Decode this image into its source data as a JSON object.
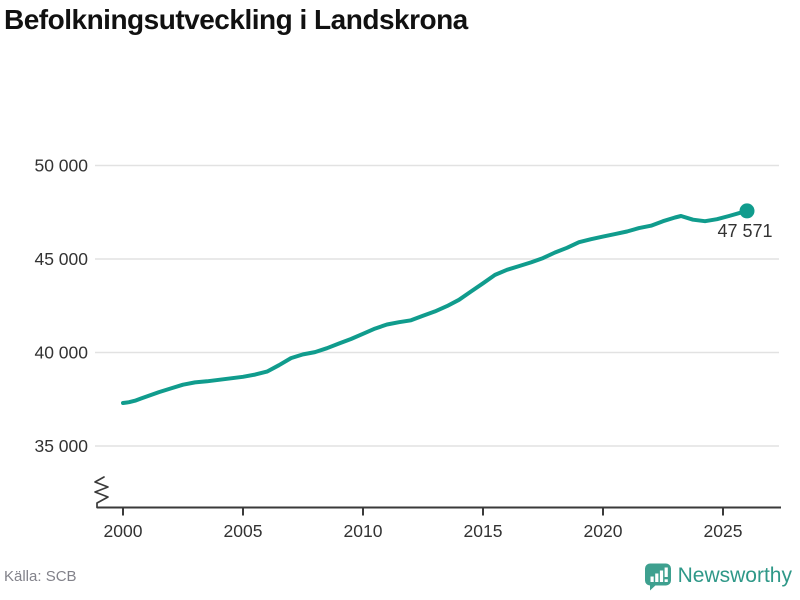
{
  "title": "Befolkningsutveckling i Landskrona",
  "source": {
    "label": "Källa: SCB"
  },
  "branding": {
    "name": "Newsworthy",
    "icon": "newsworthy-bar-chart-bubble-icon"
  },
  "colors": {
    "line": "#109c8d",
    "end_dot": "#109c8d",
    "grid": "#e2e2e2",
    "axis": "#3a3a3a",
    "tick_label": "#333333",
    "end_label": "#333333",
    "title": "#111111",
    "source_text": "#82828a",
    "brand_teal": "#3ea08f"
  },
  "chart_data": {
    "type": "line",
    "title": "Befolkningsutveckling i Landskrona",
    "xlabel": "",
    "ylabel": "",
    "grid": "horizontal",
    "legend": "none",
    "axis_break_bottom_left": true,
    "xticks": [
      2000,
      2005,
      2010,
      2015,
      2020,
      2025
    ],
    "xtick_labels": [
      "2000",
      "2005",
      "2010",
      "2015",
      "2020",
      "2025"
    ],
    "yticks": [
      35000,
      40000,
      45000,
      50000
    ],
    "ytick_labels": [
      "35 000",
      "40 000",
      "45 000",
      "50 000"
    ],
    "xlim": [
      1998.9,
      2027.4
    ],
    "ylim": [
      35000,
      50000
    ],
    "end_label": "47 571",
    "end_value": 47571,
    "series": [
      {
        "name": "Befolkning Landskrona",
        "x": [
          2000,
          2000.25,
          2000.5,
          2000.75,
          2001,
          2001.5,
          2002,
          2002.5,
          2003,
          2003.5,
          2004,
          2004.5,
          2005,
          2005.5,
          2006,
          2006.5,
          2007,
          2007.5,
          2008,
          2008.5,
          2009,
          2009.5,
          2010,
          2010.5,
          2011,
          2011.5,
          2012,
          2012.5,
          2013,
          2013.5,
          2014,
          2014.5,
          2015,
          2015.5,
          2016,
          2016.5,
          2017,
          2017.5,
          2018,
          2018.5,
          2019,
          2019.5,
          2020,
          2020.5,
          2021,
          2021.5,
          2022,
          2022.5,
          2023,
          2023.25,
          2023.75,
          2024.25,
          2024.75,
          2025.25,
          2025.75,
          2026
        ],
        "y": [
          37300,
          37340,
          37420,
          37540,
          37650,
          37880,
          38080,
          38280,
          38400,
          38460,
          38540,
          38620,
          38700,
          38820,
          38980,
          39320,
          39700,
          39900,
          40020,
          40230,
          40480,
          40720,
          41000,
          41280,
          41500,
          41620,
          41720,
          41960,
          42200,
          42480,
          42820,
          43260,
          43700,
          44150,
          44420,
          44620,
          44820,
          45050,
          45350,
          45600,
          45900,
          46060,
          46200,
          46330,
          46470,
          46650,
          46780,
          47020,
          47220,
          47300,
          47100,
          47020,
          47130,
          47300,
          47480,
          47571
        ]
      }
    ]
  }
}
